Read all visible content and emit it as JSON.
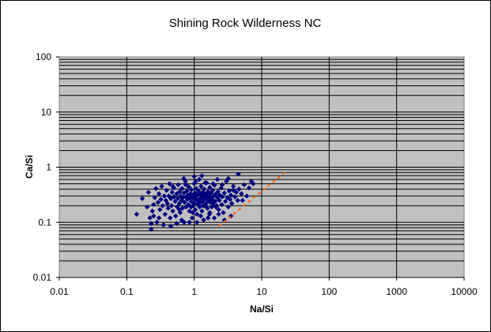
{
  "chart_data": {
    "type": "scatter",
    "title": "Shining Rock Wilderness NC",
    "xlabel": "Na/Si",
    "ylabel": "Ca/Si",
    "x_scale": "log",
    "y_scale": "log",
    "xlim": [
      0.01,
      10000
    ],
    "ylim": [
      0.01,
      100
    ],
    "x_ticks": [
      "0.01",
      "0.1",
      "1",
      "10",
      "100",
      "1000",
      "10000"
    ],
    "y_ticks": [
      "0.01",
      "0.1",
      "1",
      "10",
      "100"
    ],
    "grid": true,
    "legend": "none",
    "colors": {
      "plot_background": "#c0c0c0",
      "points": "#000080",
      "reference_line": "#ff6600",
      "gridlines": "#000000"
    },
    "series": [
      {
        "type": "scatter",
        "marker": "diamond",
        "points": [
          [
            0.14,
            0.14
          ],
          [
            0.17,
            0.27
          ],
          [
            0.2,
            0.19
          ],
          [
            0.21,
            0.35
          ],
          [
            0.22,
            0.12
          ],
          [
            0.23,
            0.095
          ],
          [
            0.23,
            0.075
          ],
          [
            0.24,
            0.16
          ],
          [
            0.25,
            0.13
          ],
          [
            0.25,
            0.21
          ],
          [
            0.26,
            0.28
          ],
          [
            0.27,
            0.41
          ],
          [
            0.28,
            0.1
          ],
          [
            0.29,
            0.23
          ],
          [
            0.3,
            0.33
          ],
          [
            0.31,
            0.17
          ],
          [
            0.32,
            0.26
          ],
          [
            0.33,
            0.45
          ],
          [
            0.34,
            0.2
          ],
          [
            0.35,
            0.09
          ],
          [
            0.36,
            0.3
          ],
          [
            0.37,
            0.14
          ],
          [
            0.38,
            0.25
          ],
          [
            0.39,
            0.38
          ],
          [
            0.4,
            0.22
          ],
          [
            0.41,
            0.18
          ],
          [
            0.42,
            0.3
          ],
          [
            0.43,
            0.5
          ],
          [
            0.44,
            0.12
          ],
          [
            0.45,
            0.27
          ],
          [
            0.46,
            0.2
          ],
          [
            0.47,
            0.35
          ],
          [
            0.48,
            0.16
          ],
          [
            0.5,
            0.29
          ],
          [
            0.5,
            0.42
          ],
          [
            0.52,
            0.24
          ],
          [
            0.53,
            0.13
          ],
          [
            0.55,
            0.33
          ],
          [
            0.56,
            0.19
          ],
          [
            0.57,
            0.27
          ],
          [
            0.58,
            0.48
          ],
          [
            0.6,
            0.22
          ],
          [
            0.61,
            0.36
          ],
          [
            0.62,
            0.15
          ],
          [
            0.63,
            0.3
          ],
          [
            0.65,
            0.25
          ],
          [
            0.66,
            0.41
          ],
          [
            0.67,
            0.18
          ],
          [
            0.68,
            0.28
          ],
          [
            0.7,
            0.34
          ],
          [
            0.71,
            0.1
          ],
          [
            0.72,
            0.23
          ],
          [
            0.74,
            0.55
          ],
          [
            0.75,
            0.29
          ],
          [
            0.76,
            0.19
          ],
          [
            0.78,
            0.37
          ],
          [
            0.79,
            0.26
          ],
          [
            0.8,
            0.31
          ],
          [
            0.82,
            0.21
          ],
          [
            0.83,
            0.44
          ],
          [
            0.85,
            0.16
          ],
          [
            0.86,
            0.28
          ],
          [
            0.88,
            0.33
          ],
          [
            0.9,
            0.24
          ],
          [
            0.91,
            0.39
          ],
          [
            0.93,
            0.12
          ],
          [
            0.95,
            0.3
          ],
          [
            0.96,
            0.2
          ],
          [
            0.98,
            0.27
          ],
          [
            1.0,
            0.5
          ],
          [
            1.0,
            0.22
          ],
          [
            1.02,
            0.34
          ],
          [
            1.04,
            0.17
          ],
          [
            1.05,
            0.29
          ],
          [
            1.07,
            0.41
          ],
          [
            1.09,
            0.25
          ],
          [
            1.1,
            0.14
          ],
          [
            1.12,
            0.31
          ],
          [
            1.14,
            0.21
          ],
          [
            1.15,
            0.37
          ],
          [
            1.17,
            0.26
          ],
          [
            1.19,
            0.6
          ],
          [
            1.2,
            0.19
          ],
          [
            1.22,
            0.32
          ],
          [
            1.24,
            0.23
          ],
          [
            1.26,
            0.45
          ],
          [
            1.28,
            0.28
          ],
          [
            1.3,
            0.16
          ],
          [
            1.32,
            0.35
          ],
          [
            1.34,
            0.24
          ],
          [
            1.36,
            0.3
          ],
          [
            1.38,
            0.11
          ],
          [
            1.4,
            0.4
          ],
          [
            1.43,
            0.2
          ],
          [
            1.45,
            0.27
          ],
          [
            1.47,
            0.33
          ],
          [
            1.5,
            0.22
          ],
          [
            1.52,
            0.52
          ],
          [
            1.55,
            0.29
          ],
          [
            1.57,
            0.18
          ],
          [
            1.6,
            0.36
          ],
          [
            1.62,
            0.25
          ],
          [
            1.65,
            0.31
          ],
          [
            1.68,
            0.14
          ],
          [
            1.7,
            0.43
          ],
          [
            1.73,
            0.23
          ],
          [
            1.76,
            0.28
          ],
          [
            1.79,
            0.34
          ],
          [
            1.82,
            0.19
          ],
          [
            1.85,
            0.26
          ],
          [
            1.88,
            0.38
          ],
          [
            1.92,
            0.22
          ],
          [
            1.95,
            0.3
          ],
          [
            1.98,
            0.12
          ],
          [
            2.0,
            0.47
          ],
          [
            2.05,
            0.24
          ],
          [
            2.1,
            0.33
          ],
          [
            2.15,
            0.2
          ],
          [
            2.2,
            0.28
          ],
          [
            2.25,
            0.36
          ],
          [
            2.3,
            0.17
          ],
          [
            2.35,
            0.25
          ],
          [
            2.4,
            0.31
          ],
          [
            2.5,
            0.42
          ],
          [
            2.55,
            0.21
          ],
          [
            2.6,
            0.29
          ],
          [
            2.7,
            0.15
          ],
          [
            2.8,
            0.34
          ],
          [
            2.9,
            0.24
          ],
          [
            3.0,
            0.55
          ],
          [
            3.1,
            0.28
          ],
          [
            3.2,
            0.19
          ],
          [
            3.3,
            0.37
          ],
          [
            3.4,
            0.26
          ],
          [
            3.5,
            0.31
          ],
          [
            3.6,
            0.22
          ],
          [
            3.8,
            0.45
          ],
          [
            4.0,
            0.29
          ],
          [
            4.2,
            0.35
          ],
          [
            4.4,
            0.25
          ],
          [
            4.6,
            0.4
          ],
          [
            5.0,
            0.33
          ],
          [
            5.5,
            0.48
          ],
          [
            6.0,
            0.3
          ],
          [
            6.5,
            0.42
          ],
          [
            7.0,
            0.55
          ],
          [
            7.5,
            0.5
          ],
          [
            1.3,
            0.7
          ],
          [
            1.0,
            0.68
          ],
          [
            0.7,
            0.62
          ],
          [
            4.5,
            0.75
          ],
          [
            3.2,
            0.62
          ],
          [
            2.2,
            0.6
          ],
          [
            1.1,
            0.1
          ],
          [
            0.85,
            0.1
          ],
          [
            0.55,
            0.095
          ],
          [
            1.6,
            0.12
          ],
          [
            2.8,
            0.11
          ],
          [
            3.5,
            0.13
          ],
          [
            0.45,
            0.085
          ],
          [
            0.65,
            0.11
          ],
          [
            0.95,
            0.15
          ],
          [
            1.25,
            0.13
          ],
          [
            1.7,
            0.15
          ],
          [
            2.3,
            0.14
          ],
          [
            0.3,
            0.12
          ],
          [
            0.48,
            0.45
          ],
          [
            0.75,
            0.48
          ],
          [
            1.05,
            0.55
          ],
          [
            1.45,
            0.52
          ],
          [
            1.9,
            0.5
          ],
          [
            2.6,
            0.48
          ],
          [
            3.8,
            0.38
          ],
          [
            5.2,
            0.25
          ],
          [
            0.9,
            0.19
          ],
          [
            1.15,
            0.24
          ],
          [
            1.35,
            0.2
          ],
          [
            1.55,
            0.26
          ],
          [
            2.1,
            0.19
          ],
          [
            0.6,
            0.17
          ]
        ]
      },
      {
        "type": "line",
        "style": "dashed",
        "points": [
          [
            2.3,
            0.085
          ],
          [
            22,
            0.8
          ]
        ]
      }
    ]
  }
}
